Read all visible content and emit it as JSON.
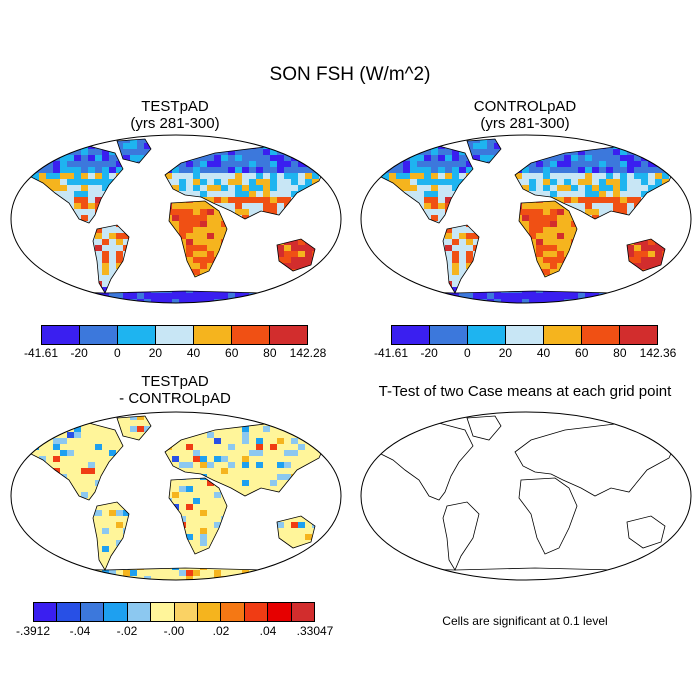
{
  "figure_title": "SON FSH (W/m^2)",
  "panels": {
    "test": {
      "title_line1": "TESTpAD",
      "title_line2": "(yrs 281-300)"
    },
    "control": {
      "title_line1": "CONTROLpAD",
      "title_line2": "(yrs 281-300)"
    },
    "diff": {
      "title_line1": "TESTpAD",
      "title_line2": "- CONTROLpAD"
    },
    "ttest": {
      "title": "T-Test of two Case means at each grid point",
      "note": "Cells are significant at 0.1 level"
    }
  },
  "colorbars": {
    "test": {
      "colors": [
        "#3a1ff0",
        "#3c78dc",
        "#1eb4f0",
        "#c8e6f5",
        "#f5b41e",
        "#f05014",
        "#d22d2d"
      ],
      "labels": [
        "-41.61",
        "-20",
        "0",
        "20",
        "40",
        "60",
        "80",
        "142.28"
      ]
    },
    "control": {
      "colors": [
        "#3a1ff0",
        "#3c78dc",
        "#1eb4f0",
        "#c8e6f5",
        "#f5b41e",
        "#f05014",
        "#d22d2d"
      ],
      "labels": [
        "-41.61",
        "-20",
        "0",
        "20",
        "40",
        "60",
        "80",
        "142.36"
      ]
    },
    "diff": {
      "colors": [
        "#3a1ff0",
        "#2850e6",
        "#3c78dc",
        "#1ea0f0",
        "#8cc8f0",
        "#fff59a",
        "#fad264",
        "#f5b41e",
        "#f57814",
        "#f03c14",
        "#e60000",
        "#d22d2d"
      ],
      "labels": [
        "-.3912",
        "-.04",
        "-.02",
        "-.00",
        ".02",
        ".04",
        ".33047"
      ]
    }
  }
}
